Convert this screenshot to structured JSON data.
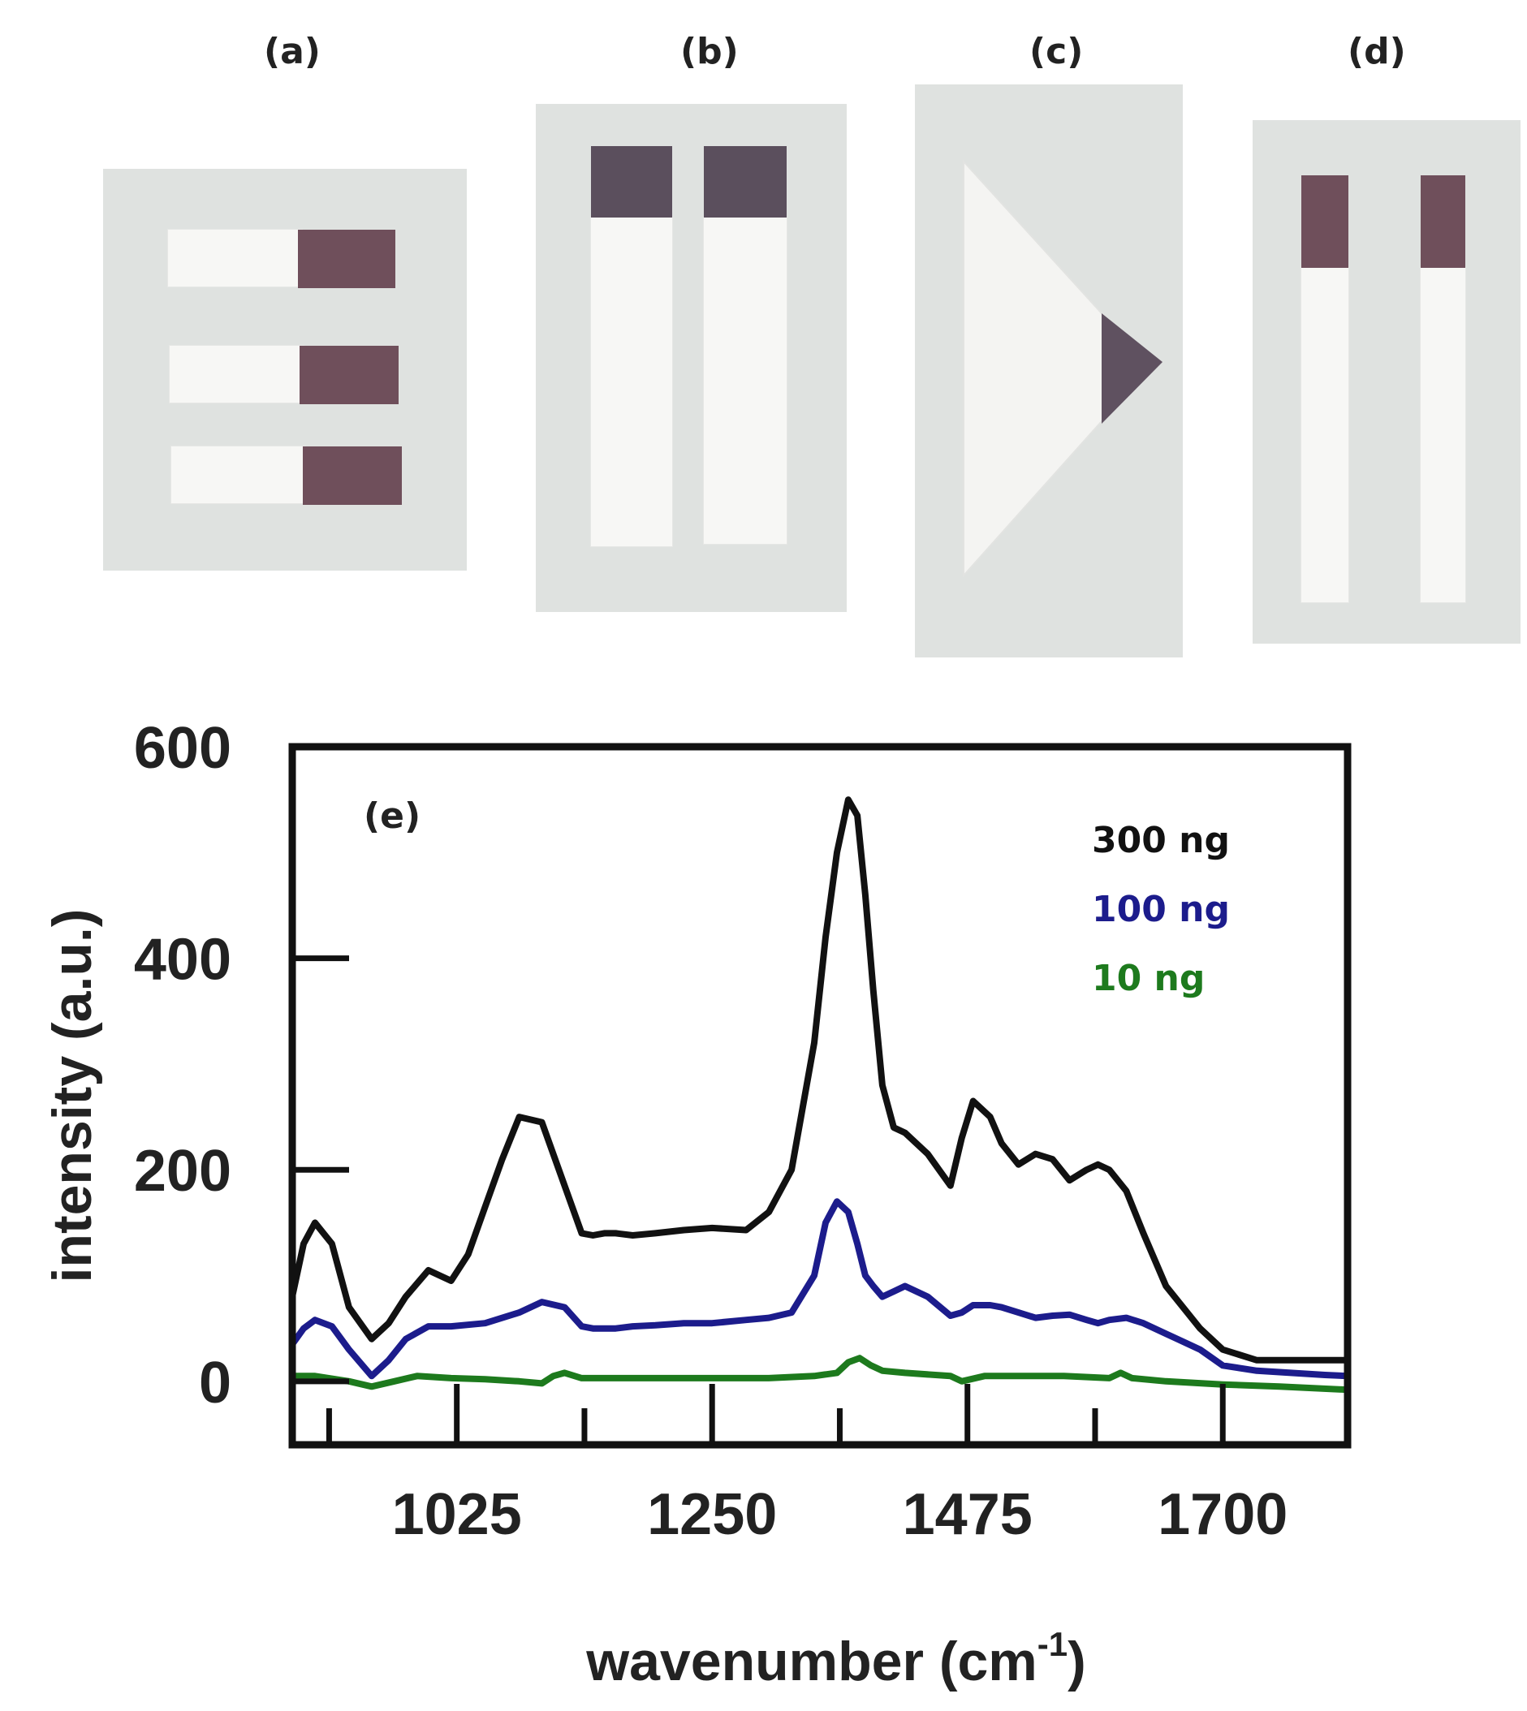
{
  "photos": {
    "labels": [
      "(a)",
      "(b)",
      "(c)",
      "(d)"
    ],
    "strip_color_white": "#f7f7f5",
    "pad_color": "#6f4f5b",
    "background_color": "#dfe2e0"
  },
  "chart_data": {
    "type": "line",
    "panel_label": "(e)",
    "xlabel": "wavenumber (cm",
    "xlabel_sup": "-1",
    "xlabel_close": ")",
    "ylabel": "intensity (a.u.)",
    "xlim": [
      880,
      1810
    ],
    "ylim": [
      -60,
      600
    ],
    "xticks": [
      1025,
      1250,
      1475,
      1700
    ],
    "yticks": [
      0,
      200,
      400,
      600
    ],
    "xtick_labels": [
      "1025",
      "1250",
      "1475",
      "1700"
    ],
    "ytick_labels": [
      "0",
      "200",
      "400",
      "600"
    ],
    "legend_position": "top-right",
    "series": [
      {
        "name": "300 ng",
        "color": "#111111",
        "x": [
          880,
          890,
          900,
          915,
          930,
          950,
          965,
          980,
          1000,
          1020,
          1035,
          1050,
          1065,
          1080,
          1100,
          1120,
          1135,
          1145,
          1155,
          1165,
          1180,
          1200,
          1225,
          1250,
          1280,
          1300,
          1320,
          1340,
          1350,
          1360,
          1370,
          1378,
          1385,
          1392,
          1400,
          1410,
          1420,
          1440,
          1460,
          1470,
          1480,
          1495,
          1505,
          1520,
          1535,
          1550,
          1565,
          1580,
          1590,
          1600,
          1615,
          1630,
          1650,
          1680,
          1700,
          1730,
          1760,
          1790,
          1810
        ],
        "y": [
          80,
          130,
          150,
          130,
          70,
          40,
          55,
          80,
          105,
          95,
          120,
          165,
          210,
          250,
          245,
          185,
          140,
          138,
          140,
          140,
          138,
          140,
          143,
          145,
          143,
          160,
          200,
          320,
          420,
          500,
          550,
          535,
          460,
          370,
          280,
          240,
          235,
          215,
          185,
          230,
          265,
          250,
          225,
          205,
          215,
          210,
          190,
          200,
          205,
          200,
          180,
          140,
          90,
          50,
          30,
          20,
          20,
          20,
          20
        ]
      },
      {
        "name": "100 ng",
        "color": "#1c1c8c",
        "x": [
          880,
          890,
          900,
          915,
          930,
          950,
          965,
          980,
          1000,
          1020,
          1050,
          1080,
          1100,
          1120,
          1135,
          1145,
          1155,
          1165,
          1180,
          1200,
          1225,
          1250,
          1280,
          1300,
          1320,
          1340,
          1350,
          1360,
          1370,
          1378,
          1385,
          1392,
          1400,
          1410,
          1420,
          1440,
          1460,
          1470,
          1480,
          1495,
          1505,
          1520,
          1535,
          1550,
          1565,
          1580,
          1590,
          1600,
          1615,
          1630,
          1650,
          1680,
          1700,
          1730,
          1760,
          1790,
          1810
        ],
        "y": [
          35,
          50,
          58,
          52,
          30,
          5,
          20,
          40,
          52,
          52,
          55,
          65,
          75,
          70,
          52,
          50,
          50,
          50,
          52,
          53,
          55,
          55,
          58,
          60,
          65,
          100,
          150,
          170,
          160,
          130,
          100,
          90,
          80,
          85,
          90,
          80,
          62,
          65,
          72,
          72,
          70,
          65,
          60,
          62,
          63,
          58,
          55,
          58,
          60,
          55,
          45,
          30,
          15,
          10,
          8,
          6,
          5
        ]
      },
      {
        "name": "10 ng",
        "color": "#1d7a1d",
        "x": [
          880,
          900,
          930,
          950,
          970,
          990,
          1020,
          1050,
          1080,
          1100,
          1110,
          1120,
          1135,
          1150,
          1180,
          1220,
          1260,
          1300,
          1340,
          1360,
          1370,
          1380,
          1390,
          1400,
          1420,
          1460,
          1470,
          1490,
          1520,
          1560,
          1600,
          1610,
          1620,
          1650,
          1700,
          1750,
          1810
        ],
        "y": [
          5,
          5,
          0,
          -5,
          0,
          5,
          3,
          2,
          0,
          -2,
          5,
          8,
          3,
          3,
          3,
          3,
          3,
          3,
          5,
          8,
          18,
          22,
          15,
          10,
          8,
          5,
          0,
          5,
          5,
          5,
          3,
          8,
          3,
          0,
          -3,
          -5,
          -8
        ]
      }
    ]
  }
}
